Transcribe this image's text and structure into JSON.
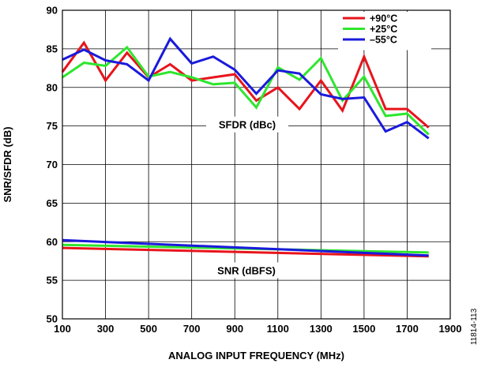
{
  "chart_data": {
    "type": "line",
    "xlabel": "ANALOG INPUT FREQUENCY (MHz)",
    "ylabel": "SNR/SFDR (dB)",
    "xlim": [
      100,
      1900
    ],
    "ylim": [
      50,
      90
    ],
    "xticks": [
      100,
      300,
      500,
      700,
      900,
      1100,
      1300,
      1500,
      1700,
      1900
    ],
    "yticks": [
      50,
      55,
      60,
      65,
      70,
      75,
      80,
      85,
      90
    ],
    "grid": true,
    "legend_position": "top-right",
    "colors": {
      "+90°C": "#e8141b",
      "+25°C": "#2ee62e",
      "–55°C": "#1a1adc"
    },
    "annotations": [
      "SFDR (dBc)",
      "SNR (dBFS)"
    ],
    "figure_id": "11814-113",
    "series": [
      {
        "name": "+90°C",
        "group": "SFDR",
        "x": [
          100,
          200,
          300,
          400,
          500,
          600,
          700,
          800,
          900,
          1000,
          1100,
          1200,
          1300,
          1400,
          1500,
          1600,
          1700,
          1800
        ],
        "values": [
          82.0,
          85.8,
          80.9,
          84.5,
          81.3,
          83.0,
          80.9,
          81.3,
          81.7,
          78.3,
          80.0,
          77.2,
          80.9,
          77.0,
          84.0,
          77.2,
          77.2,
          74.8
        ]
      },
      {
        "name": "+25°C",
        "group": "SFDR",
        "x": [
          100,
          200,
          300,
          400,
          500,
          600,
          700,
          800,
          900,
          1000,
          1100,
          1200,
          1300,
          1400,
          1500,
          1600,
          1700,
          1800
        ],
        "values": [
          81.3,
          83.2,
          82.8,
          85.2,
          81.4,
          82.0,
          81.3,
          80.4,
          80.6,
          77.4,
          82.6,
          81.0,
          83.8,
          78.3,
          81.4,
          76.3,
          76.6,
          73.9
        ]
      },
      {
        "name": "–55°C",
        "group": "SFDR",
        "x": [
          100,
          200,
          300,
          400,
          500,
          600,
          700,
          800,
          900,
          1000,
          1100,
          1200,
          1300,
          1400,
          1500,
          1600,
          1700,
          1800
        ],
        "values": [
          83.6,
          84.9,
          83.5,
          83.0,
          80.9,
          86.3,
          83.1,
          84.0,
          82.3,
          79.2,
          82.2,
          81.8,
          79.1,
          78.5,
          78.7,
          74.3,
          75.5,
          73.4
        ]
      },
      {
        "name": "+90°C",
        "group": "SNR",
        "x": [
          100,
          1800
        ],
        "values": [
          59.2,
          58.1
        ]
      },
      {
        "name": "+25°C",
        "group": "SNR",
        "x": [
          100,
          1800
        ],
        "values": [
          59.6,
          58.6
        ]
      },
      {
        "name": "–55°C",
        "group": "SNR",
        "x": [
          100,
          1800
        ],
        "values": [
          60.2,
          58.2
        ]
      }
    ]
  }
}
